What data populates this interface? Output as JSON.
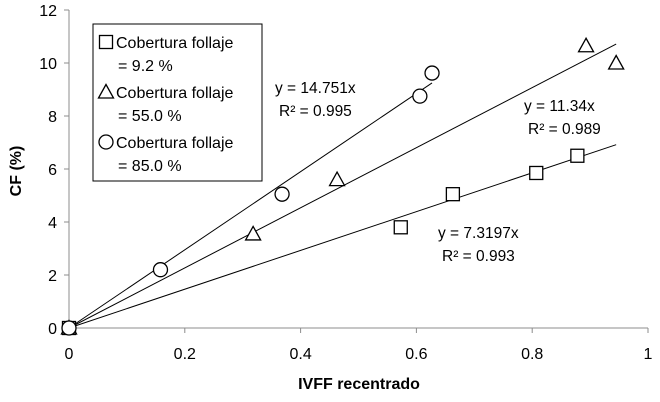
{
  "chart_data": {
    "type": "scatter",
    "xlabel": "IVFF recentrado",
    "ylabel": "CF (%)",
    "xlim": [
      0,
      1
    ],
    "ylim": [
      0,
      12
    ],
    "x_ticks": [
      "0",
      "0.2",
      "0.4",
      "0.6",
      "0.8",
      "1"
    ],
    "y_ticks": [
      "0",
      "2",
      "4",
      "6",
      "8",
      "10",
      "12"
    ],
    "grid": false,
    "legend": "top-left",
    "series": [
      {
        "name_lines": [
          "Cobertura follaje",
          "= 9.2 %"
        ],
        "marker": "square",
        "points": [
          [
            0,
            0
          ],
          [
            0.573,
            3.8
          ],
          [
            0.663,
            5.05
          ],
          [
            0.807,
            5.85
          ],
          [
            0.878,
            6.5
          ]
        ],
        "fit": {
          "slope": 7.3197,
          "x_end": 0.945,
          "equation": "y = 7.3197x",
          "r2": "R² = 0.993"
        }
      },
      {
        "name_lines": [
          "Cobertura follaje",
          "= 55.0 %"
        ],
        "marker": "triangle",
        "points": [
          [
            0,
            0
          ],
          [
            0.318,
            3.55
          ],
          [
            0.463,
            5.6
          ],
          [
            0.893,
            10.65
          ],
          [
            0.945,
            10.0
          ]
        ],
        "fit": {
          "slope": 11.34,
          "x_end": 0.945,
          "equation": "y = 11.34x",
          "r2": "R² = 0.989"
        }
      },
      {
        "name_lines": [
          "Cobertura follaje",
          "= 85.0 %"
        ],
        "marker": "circle",
        "points": [
          [
            0,
            0
          ],
          [
            0.158,
            2.2
          ],
          [
            0.368,
            5.05
          ],
          [
            0.606,
            8.75
          ],
          [
            0.627,
            9.62
          ]
        ],
        "fit": {
          "slope": 14.751,
          "x_end": 0.627,
          "equation": "y = 14.751x",
          "r2": "R² = 0.995"
        }
      }
    ]
  }
}
